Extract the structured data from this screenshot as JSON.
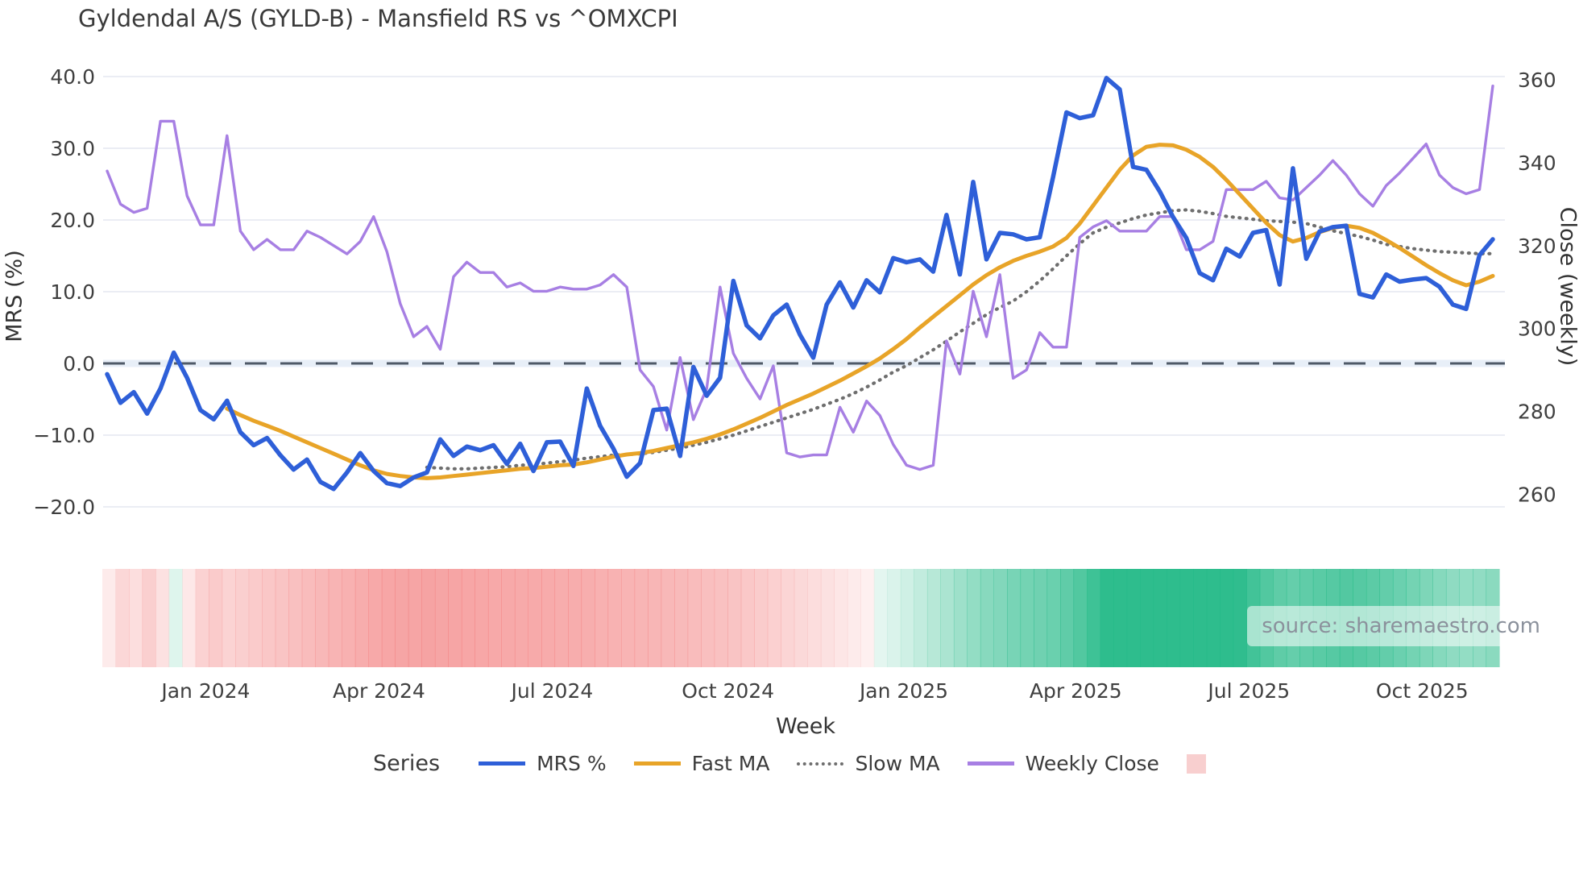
{
  "title": "Gyldendal A/S (GYLD-B) - Mansfield RS vs ^OMXCPI",
  "source_text": "source: sharemaestro.com",
  "colors": {
    "mrs": "#2e5fd8",
    "fast_ma": "#e8a428",
    "slow_ma": "#6e6e6e",
    "weekly_close": "#a77fe3",
    "zero_dash": "#4f5a68",
    "zero_band": "#dce6f5",
    "gridline": "#ebedf4",
    "tick_text": "#3f3f3f",
    "ribbon_red": "242,118,118",
    "ribbon_green": "35,185,135",
    "legend_pink_swatch": "#f8cfcf"
  },
  "legend": {
    "series_title": "Series",
    "items": [
      {
        "label": "MRS %",
        "style": "solid",
        "color": "#2e5fd8"
      },
      {
        "label": "Fast MA",
        "style": "solid",
        "color": "#e8a428"
      },
      {
        "label": "Slow MA",
        "style": "dotted",
        "color": "#6e6e6e"
      },
      {
        "label": "Weekly Close",
        "style": "solid",
        "color": "#a77fe3"
      },
      {
        "label": "",
        "style": "swatch",
        "color": "#f8cfcf"
      }
    ]
  },
  "chart_data": {
    "type": "line",
    "title": "Gyldendal A/S (GYLD-B) - Mansfield RS vs ^OMXCPI",
    "xlabel": "Week",
    "ylabel_left": "MRS (%)",
    "ylabel_right": "Close (weekly)",
    "ylim_left": [
      -20,
      40
    ],
    "ylim_right": [
      260,
      360
    ],
    "yticks_left": [
      40,
      30,
      20,
      10,
      0,
      -10,
      -20
    ],
    "ytick_labels_left": [
      "40.0",
      "30.0",
      "20.0",
      "10.0",
      "0.0",
      "−10.0",
      "−20.0"
    ],
    "yticks_right": [
      360,
      340,
      320,
      300,
      280,
      260
    ],
    "ytick_labels_right": [
      "360",
      "340",
      "320",
      "300",
      "280",
      "260"
    ],
    "grid": true,
    "zero_line": 0,
    "xticks": [
      {
        "label": "Jan 2024",
        "week": 7.4
      },
      {
        "label": "Apr 2024",
        "week": 20.4
      },
      {
        "label": "Jul 2024",
        "week": 33.4
      },
      {
        "label": "Oct 2024",
        "week": 46.6
      },
      {
        "label": "Jan 2025",
        "week": 59.8
      },
      {
        "label": "Apr 2025",
        "week": 72.7
      },
      {
        "label": "Jul 2025",
        "week": 85.7
      },
      {
        "label": "Oct 2025",
        "week": 98.7
      }
    ],
    "series": [
      {
        "name": "MRS %",
        "axis": "left",
        "values": [
          -1.5,
          -5.5,
          -4,
          -7,
          -3.5,
          1.5,
          -2,
          -6.5,
          -7.8,
          -5.2,
          -9.6,
          -11.4,
          -10.4,
          -12.8,
          -14.8,
          -13.4,
          -16.5,
          -17.5,
          -15.2,
          -12.5,
          -15,
          -16.7,
          -17.1,
          -15.9,
          -15.2,
          -10.6,
          -12.9,
          -11.6,
          -12.1,
          -11.4,
          -14,
          -11.2,
          -15,
          -11,
          -10.9,
          -14.3,
          -3.5,
          -8.7,
          -11.9,
          -15.8,
          -13.9,
          -6.5,
          -6.3,
          -12.9,
          -0.5,
          -4.5,
          -2,
          11.5,
          5.3,
          3.5,
          6.7,
          8.2,
          4,
          0.8,
          8.2,
          11.3,
          7.8,
          11.6,
          9.9,
          14.7,
          14.1,
          14.5,
          12.8,
          20.7,
          12.4,
          25.3,
          14.5,
          18.2,
          18,
          17.3,
          17.6,
          26,
          35,
          34.2,
          34.6,
          39.8,
          38.2,
          27.4,
          27,
          24,
          20.4,
          17.5,
          12.6,
          11.6,
          16,
          14.9,
          18.2,
          18.6,
          11,
          27.2,
          14.6,
          18.4,
          19,
          19.2,
          9.7,
          9.2,
          12.4,
          11.4,
          11.7,
          11.9,
          10.7,
          8.2,
          7.6,
          15.1,
          17.3
        ]
      },
      {
        "name": "Fast MA",
        "axis": "left",
        "values": [
          null,
          null,
          null,
          null,
          null,
          null,
          null,
          null,
          null,
          -6.3,
          -7.2,
          -8,
          -8.7,
          -9.4,
          -10.2,
          -11,
          -11.8,
          -12.6,
          -13.4,
          -14.2,
          -14.9,
          -15.4,
          -15.7,
          -15.9,
          -16,
          -15.9,
          -15.7,
          -15.5,
          -15.3,
          -15.1,
          -14.9,
          -14.7,
          -14.6,
          -14.4,
          -14.2,
          -14.1,
          -13.8,
          -13.4,
          -13,
          -12.7,
          -12.5,
          -12.2,
          -11.8,
          -11.4,
          -11,
          -10.5,
          -9.9,
          -9.2,
          -8.4,
          -7.6,
          -6.7,
          -5.8,
          -5,
          -4.2,
          -3.3,
          -2.4,
          -1.4,
          -0.4,
          0.7,
          2,
          3.4,
          5,
          6.5,
          8,
          9.5,
          11,
          12.3,
          13.4,
          14.3,
          15,
          15.6,
          16.3,
          17.5,
          19.5,
          22,
          24.5,
          27,
          29,
          30.2,
          30.5,
          30.4,
          29.8,
          28.8,
          27.4,
          25.6,
          23.6,
          21.6,
          19.6,
          17.9,
          17,
          17.5,
          18.3,
          18.9,
          19.2,
          18.9,
          18.2,
          17.2,
          16.1,
          14.9,
          13.7,
          12.6,
          11.6,
          10.9,
          11.4,
          12.2
        ]
      },
      {
        "name": "Slow MA",
        "axis": "left",
        "values": [
          null,
          null,
          null,
          null,
          null,
          null,
          null,
          null,
          null,
          null,
          null,
          null,
          null,
          null,
          null,
          null,
          null,
          null,
          null,
          null,
          null,
          null,
          null,
          null,
          -14.5,
          -14.6,
          -14.7,
          -14.7,
          -14.6,
          -14.5,
          -14.4,
          -14.2,
          -14.1,
          -13.9,
          -13.7,
          -13.5,
          -13.2,
          -13,
          -12.8,
          -12.7,
          -12.6,
          -12.4,
          -12.1,
          -11.8,
          -11.4,
          -11,
          -10.5,
          -10,
          -9.4,
          -8.8,
          -8.2,
          -7.6,
          -7,
          -6.4,
          -5.7,
          -5,
          -4.2,
          -3.3,
          -2.3,
          -1.2,
          -0.3,
          0.8,
          1.9,
          3.1,
          4.4,
          5.6,
          6.8,
          7.8,
          8.7,
          10,
          11.5,
          13.2,
          15,
          16.7,
          18.2,
          19,
          19.6,
          20.2,
          20.7,
          21,
          21.3,
          21.4,
          21.2,
          20.9,
          20.5,
          20.3,
          20.1,
          19.9,
          19.8,
          19.7,
          19.5,
          19,
          18.5,
          18.1,
          17.7,
          17.2,
          16.6,
          16.3,
          16,
          15.8,
          15.6,
          15.5,
          15.4,
          15.3,
          15.3
        ]
      },
      {
        "name": "Weekly Close",
        "axis": "right",
        "values": [
          338,
          330,
          328,
          329,
          350,
          350,
          332,
          325,
          325,
          346.5,
          323.5,
          319,
          321.5,
          319,
          319,
          323.5,
          322,
          320,
          318,
          321,
          327,
          318.5,
          306,
          298,
          300.5,
          295,
          312.5,
          316,
          313.5,
          313.5,
          310,
          311,
          309,
          309,
          310,
          309.5,
          309.5,
          310.5,
          313,
          310,
          290,
          286,
          275.5,
          293,
          278,
          285.5,
          310,
          294,
          288,
          283,
          291,
          270,
          269,
          269.5,
          269.5,
          281,
          275,
          282.5,
          279,
          272,
          267,
          266,
          267,
          297,
          289,
          309,
          298,
          313,
          288,
          290,
          299,
          295.5,
          295.5,
          322,
          324.5,
          326,
          323.5,
          323.5,
          323.5,
          327,
          327,
          319,
          319,
          321,
          333.5,
          333.5,
          333.5,
          335.5,
          331.5,
          331,
          334,
          337,
          340.5,
          337,
          332.5,
          329.5,
          334.5,
          337.5,
          341,
          344.5,
          337,
          334,
          332.5,
          333.5,
          358.5
        ]
      }
    ],
    "ribbon": {
      "desc": "weekly strength heatmap, red negative to green positive, derived from Fast MA / MRS",
      "max_abs": 24
    }
  }
}
